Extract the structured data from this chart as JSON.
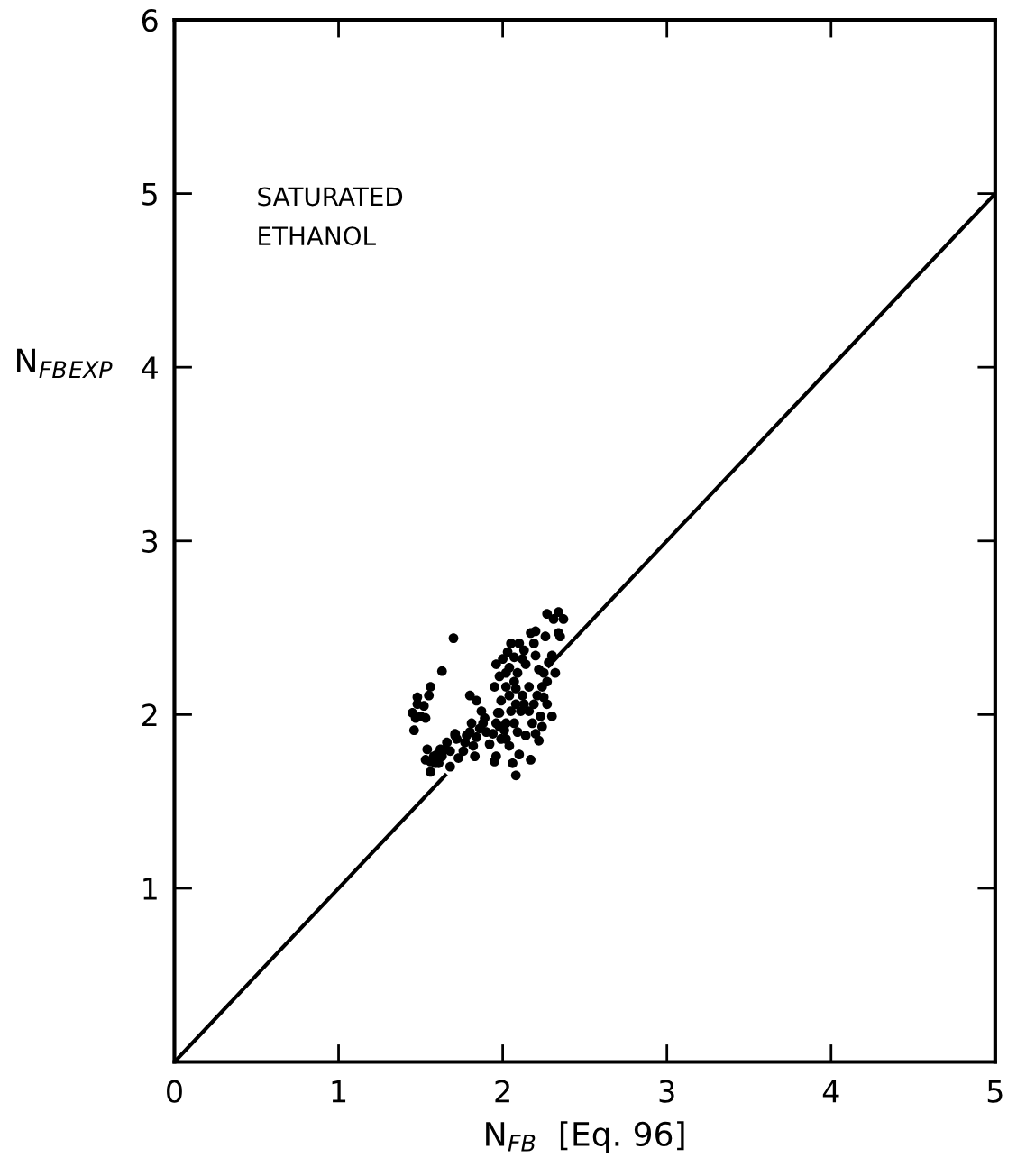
{
  "chart_data": {
    "type": "scatter",
    "xlabel": "N$_{FB}$  [Eq. 96]",
    "ylabel": "N$_{FB}$$_{EXP}$",
    "annotations": [
      "SATURATED\nETHANOL"
    ],
    "xlim": [
      0,
      5
    ],
    "ylim": [
      0,
      6
    ],
    "xticks": [
      0,
      1,
      2,
      3,
      4,
      5
    ],
    "yticks": [
      {
        "value": 0,
        "label": null
      },
      1,
      2,
      3,
      4,
      5,
      6
    ],
    "grid": false,
    "marker": "circle",
    "series": [
      {
        "color": "#000000",
        "x": [
          1.46,
          1.47,
          1.48,
          1.5,
          1.52,
          1.53,
          1.55,
          1.56,
          1.48,
          1.45,
          1.7,
          1.63,
          1.53,
          1.56,
          1.58,
          1.6,
          1.62,
          1.63,
          1.65,
          1.66,
          1.54,
          1.59,
          1.68,
          1.71,
          1.72,
          1.73,
          1.76,
          1.77,
          1.78,
          1.8,
          1.81,
          1.82,
          1.84,
          1.86,
          1.88,
          1.89,
          1.8,
          1.84,
          1.87,
          1.83,
          1.9,
          1.92,
          1.94,
          1.96,
          1.98,
          1.99,
          1.71,
          1.68,
          1.56,
          1.61,
          1.96,
          1.98,
          2.0,
          2.02,
          2.03,
          2.04,
          2.05,
          2.07,
          2.09,
          2.1,
          2.12,
          2.13,
          2.17,
          2.19,
          2.2,
          2.22,
          2.2,
          2.26,
          2.27,
          2.31,
          2.34,
          2.37,
          2.34,
          2.28,
          2.24,
          2.21,
          2.16,
          2.12,
          2.08,
          2.04,
          1.99,
          1.97,
          1.95,
          1.98,
          2.01,
          2.02,
          2.04,
          2.02,
          2.07,
          2.09,
          2.11,
          2.13,
          2.16,
          2.18,
          2.2,
          2.22,
          2.14,
          2.17,
          2.1,
          2.06,
          2.08,
          1.96,
          1.95,
          2.23,
          2.25,
          2.27,
          2.32,
          2.3,
          2.24,
          2.27,
          2.08,
          2.19,
          2.25,
          2.3,
          2.14,
          2.07,
          2.02,
          2.05,
          2.35
        ],
        "values": [
          1.91,
          1.98,
          2.06,
          1.99,
          2.05,
          1.98,
          2.11,
          2.16,
          2.1,
          2.01,
          2.44,
          2.25,
          1.74,
          1.73,
          1.76,
          1.77,
          1.8,
          1.76,
          1.8,
          1.84,
          1.8,
          1.72,
          1.79,
          1.88,
          1.86,
          1.75,
          1.79,
          1.84,
          1.88,
          1.9,
          1.95,
          1.82,
          1.87,
          1.92,
          1.95,
          1.98,
          2.11,
          2.08,
          2.02,
          1.76,
          1.9,
          1.83,
          1.89,
          1.95,
          2.01,
          1.86,
          1.89,
          1.7,
          1.67,
          1.72,
          2.29,
          2.22,
          2.32,
          2.24,
          2.36,
          2.27,
          2.41,
          2.33,
          2.24,
          2.41,
          2.32,
          2.37,
          2.47,
          2.41,
          2.34,
          2.26,
          2.48,
          2.45,
          2.58,
          2.55,
          2.59,
          2.55,
          2.47,
          2.3,
          2.16,
          2.11,
          2.16,
          2.11,
          2.15,
          2.11,
          2.08,
          2.01,
          2.16,
          1.93,
          1.91,
          1.86,
          1.82,
          1.95,
          1.95,
          1.9,
          2.02,
          2.06,
          2.02,
          1.95,
          1.89,
          1.85,
          1.88,
          1.74,
          1.77,
          1.72,
          1.65,
          1.76,
          1.73,
          1.99,
          2.1,
          2.19,
          2.24,
          1.99,
          1.93,
          2.06,
          2.06,
          2.06,
          2.24,
          2.34,
          2.29,
          2.19,
          2.16,
          2.02,
          2.45
        ]
      },
      {
        "type": "line",
        "color": "#000000",
        "marker": "none",
        "x": [
          0,
          1.65,
          1.95,
          2.28,
          5
        ],
        "values": [
          0,
          1.65,
          null,
          2.28,
          5
        ]
      }
    ]
  }
}
